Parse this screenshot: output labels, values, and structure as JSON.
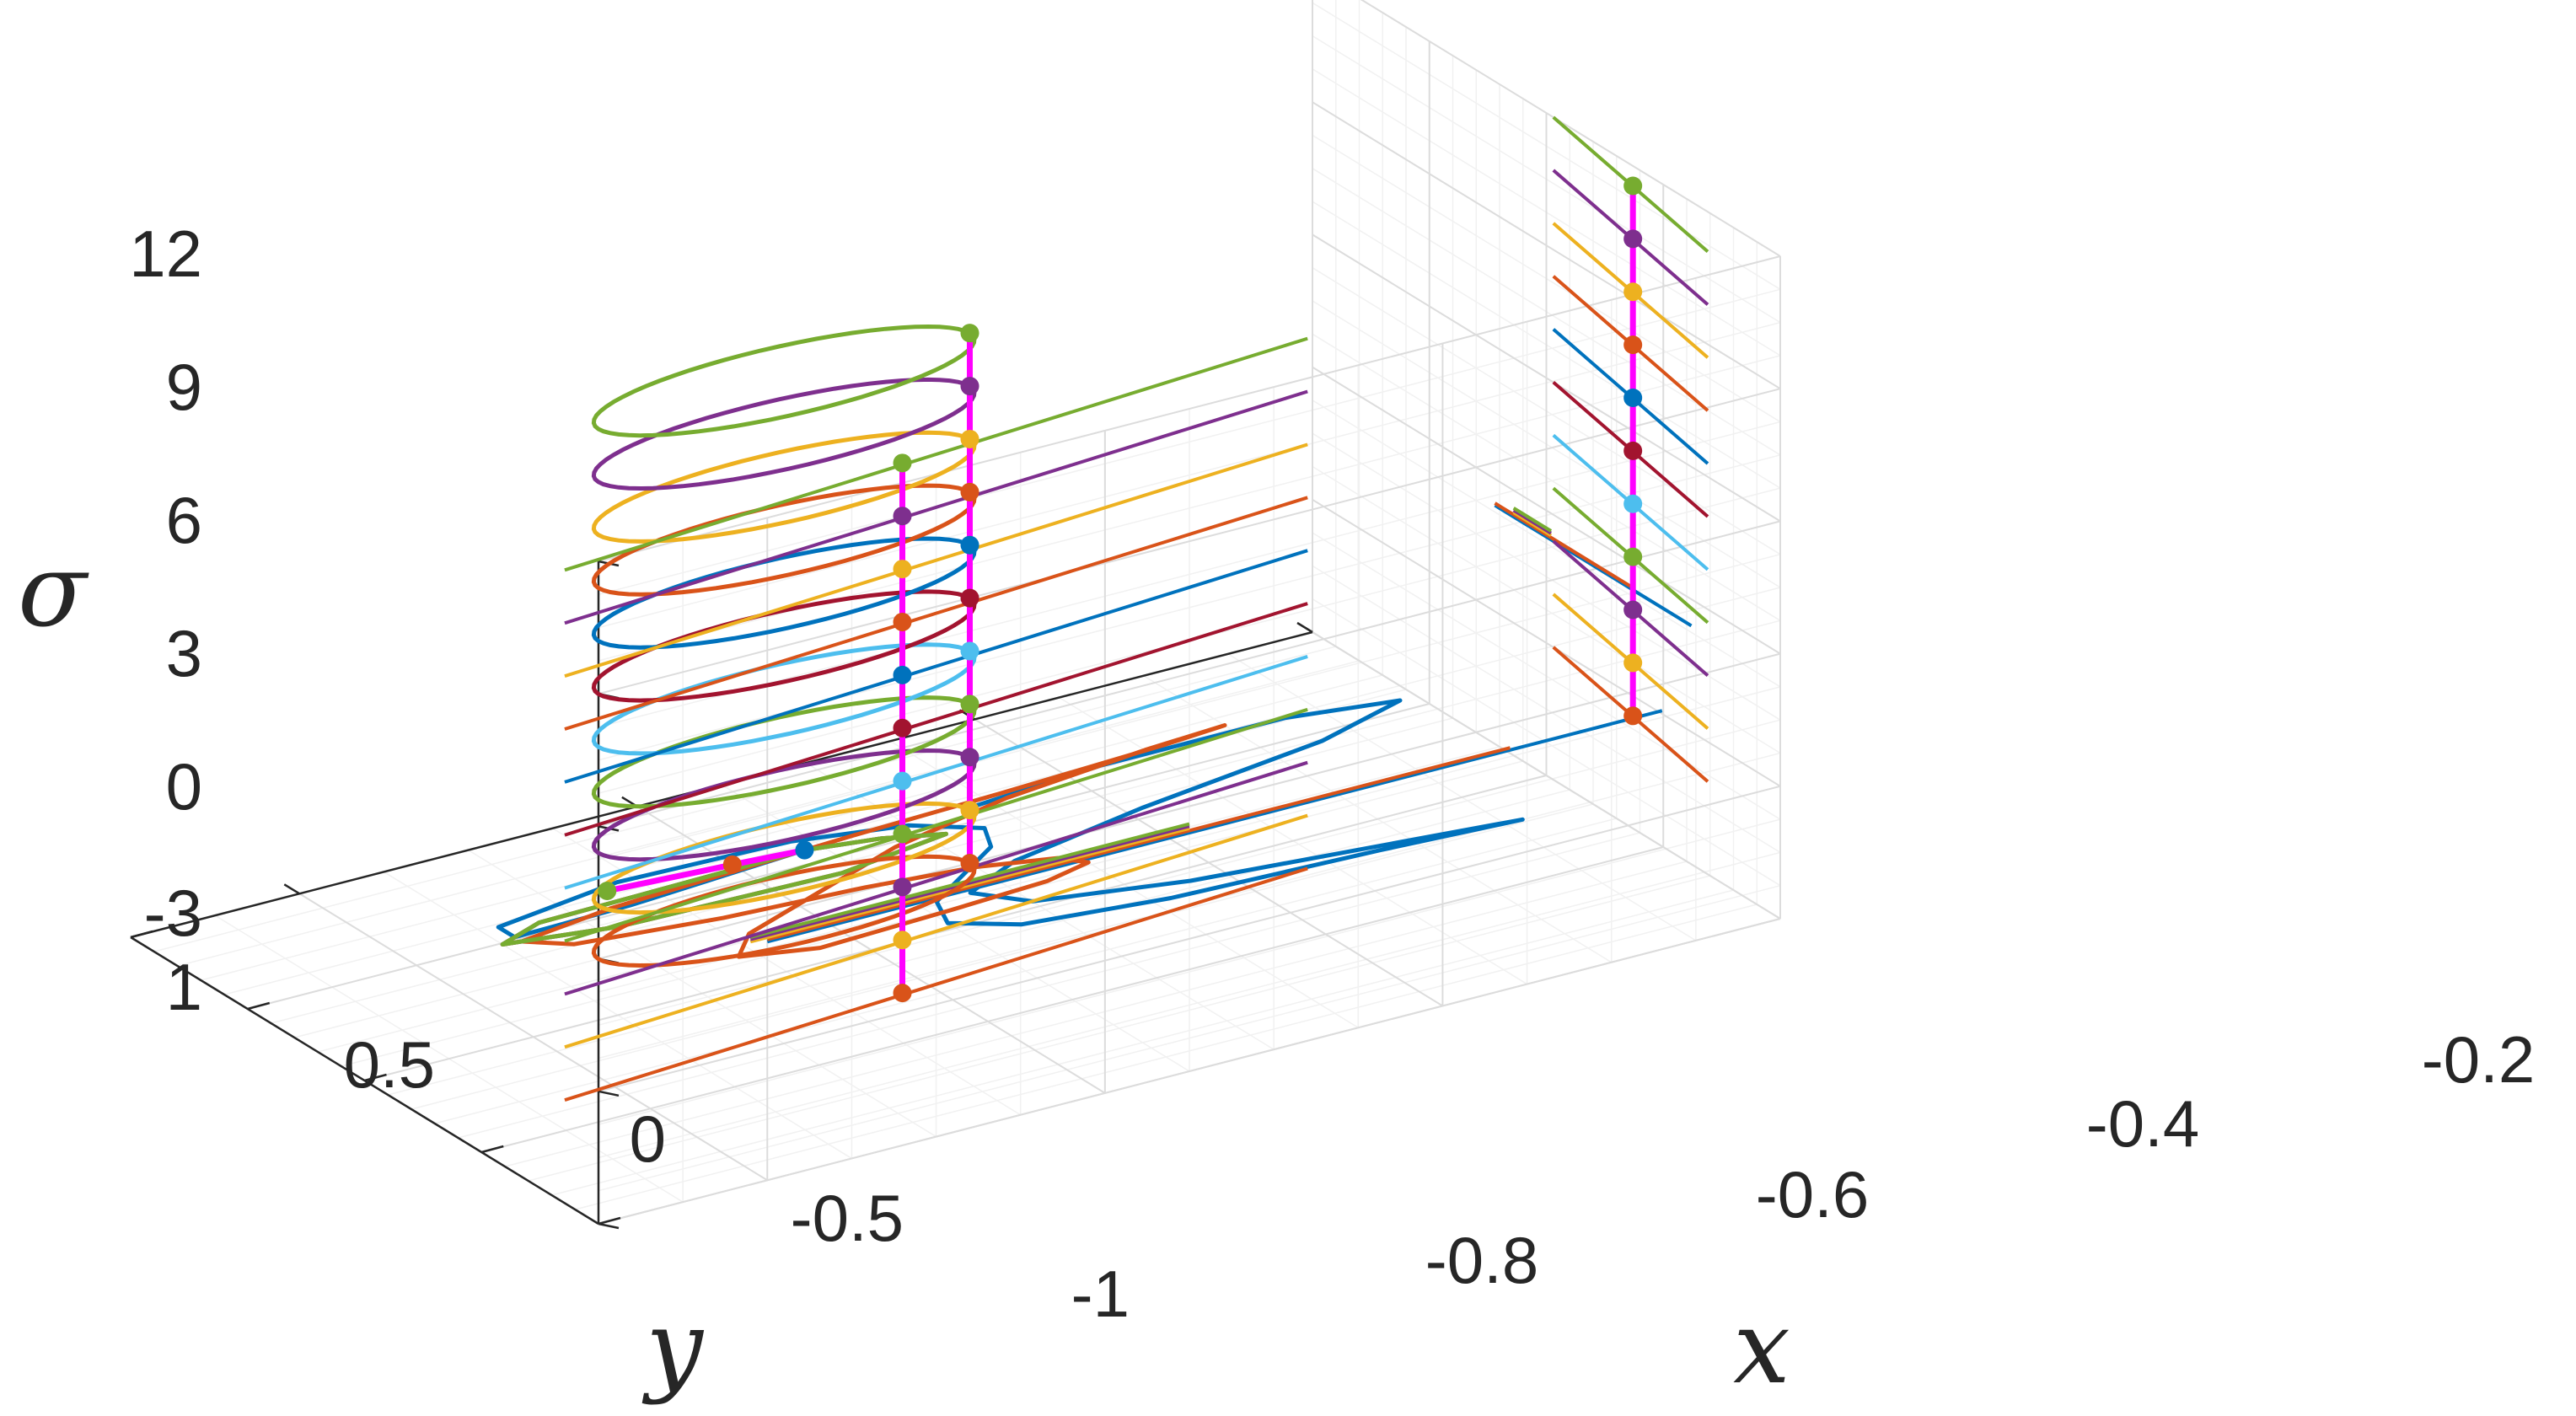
{
  "chart_data": {
    "type": "line",
    "plot_kind": "3d-line-with-markers",
    "xlabel": "x",
    "ylabel": "y",
    "zlabel": "σ",
    "xlim": [
      -0.9,
      -0.2
    ],
    "ylim": [
      -1,
      1
    ],
    "zlim": [
      -3,
      12
    ],
    "x_ticks": [
      "-0.8",
      "-0.6",
      "-0.4",
      "-0.2"
    ],
    "y_ticks": [
      "1",
      "0.5",
      "0",
      "-0.5",
      "-1"
    ],
    "z_ticks": [
      "12",
      "9",
      "6",
      "3",
      "0",
      "-3"
    ],
    "grid": true,
    "minor_grid": true,
    "legend": "none",
    "series_colors": [
      "#0072BD",
      "#D95319",
      "#EDB120",
      "#7E2F8E",
      "#77AC30",
      "#4DBEEE",
      "#A2142F",
      "#0072BD",
      "#D95319",
      "#EDB120",
      "#7E2F8E",
      "#77AC30"
    ],
    "highlight_color": "#FF00FF",
    "levels_sigma": [
      -1.0,
      0.0,
      1.2,
      2.4,
      3.6,
      4.8,
      6.0,
      7.2,
      8.4,
      9.6,
      10.8,
      12.0
    ],
    "series": [
      {
        "x": [
          -0.62,
          -0.73,
          -0.8,
          -0.8,
          -0.72,
          -0.62,
          -0.56,
          -0.53,
          -0.54,
          -0.57,
          -0.6,
          -0.61,
          -0.58,
          -0.5,
          -0.38,
          -0.3,
          -0.36,
          -0.48,
          -0.56,
          -0.58,
          -0.54,
          -0.45,
          -0.33,
          -0.27,
          -0.33,
          -0.44,
          -0.52,
          -0.52
        ],
        "y": [
          -0.14,
          -0.09,
          -0.08,
          -0.15,
          -0.22,
          -0.2,
          -0.13,
          -0.02,
          0.08,
          0.18,
          0.28,
          0.4,
          0.5,
          0.56,
          0.59,
          0.62,
          0.58,
          0.5,
          0.4,
          0.28,
          0.18,
          0.08,
          -0.02,
          -0.12,
          -0.18,
          -0.18,
          -0.14,
          -0.14
        ],
        "z": [
          -1,
          -1,
          -1,
          -1,
          -1,
          -1,
          -1,
          -1,
          -1,
          -1,
          -1,
          -1,
          -1,
          -1,
          -1,
          -1,
          -1,
          -1,
          -1,
          -1,
          -1,
          -1,
          -1,
          -1,
          -1,
          -1,
          -1,
          -1
        ]
      },
      {
        "x": [
          -0.62,
          -0.74,
          -0.8,
          -0.78,
          -0.7,
          -0.62,
          -0.56,
          -0.52,
          -0.51,
          -0.54,
          -0.6,
          -0.68,
          -0.72,
          -0.7,
          -0.64,
          -0.58,
          -0.5,
          -0.41,
          -0.36,
          -0.4,
          -0.5,
          -0.59,
          -0.62
        ],
        "y": [
          -0.14,
          -0.1,
          -0.05,
          0.03,
          0.09,
          0.12,
          0.16,
          0.22,
          0.28,
          0.32,
          0.34,
          0.36,
          0.3,
          0.2,
          0.08,
          -0.04,
          -0.14,
          -0.2,
          -0.22,
          -0.2,
          -0.17,
          -0.15,
          -0.14
        ],
        "z": [
          -1,
          -1,
          -1,
          -1,
          -1,
          -1,
          -1,
          -1,
          -1,
          -1,
          -1,
          -1,
          -1,
          -1,
          -1,
          -1,
          -1,
          -1,
          -1,
          -1,
          -1,
          -1,
          -1
        ]
      },
      {
        "x": [
          -0.62,
          -0.78,
          -0.81,
          -0.75,
          -0.62,
          -0.55,
          -0.58,
          -0.62
        ],
        "y": [
          -0.14,
          -0.12,
          -0.06,
          0.0,
          0.02,
          -0.04,
          -0.1,
          -0.14
        ],
        "z": [
          -1,
          -1,
          -1,
          -1,
          -1,
          -1,
          -1,
          -1
        ]
      },
      {
        "x": [
          -0.62,
          -0.78,
          -0.81,
          -0.75,
          -0.62,
          -0.55,
          -0.58,
          -0.62
        ],
        "y": [
          -0.14,
          -0.12,
          -0.06,
          0.0,
          0.02,
          -0.04,
          -0.1,
          -0.14
        ],
        "z": [
          -1,
          -1,
          -1,
          -1,
          -1,
          -1,
          -1,
          -1
        ]
      },
      {
        "x": [
          -0.62,
          -0.78,
          -0.81,
          -0.75,
          -0.62,
          -0.55,
          -0.58,
          -0.62
        ],
        "y": [
          -0.14,
          -0.12,
          -0.06,
          0.0,
          0.02,
          -0.04,
          -0.1,
          -0.14
        ],
        "z": [
          -1,
          -1,
          -1,
          -1,
          -1,
          -1,
          -1,
          -1
        ]
      }
    ],
    "marker_points": [
      {
        "x": -0.62,
        "y": -0.14,
        "z": -1,
        "color": "#0072BD"
      },
      {
        "x": -0.66,
        "y": -0.16,
        "z": -1,
        "color": "#D95319"
      },
      {
        "x": -0.73,
        "y": -0.19,
        "z": -1,
        "color": "#77AC30"
      }
    ]
  }
}
